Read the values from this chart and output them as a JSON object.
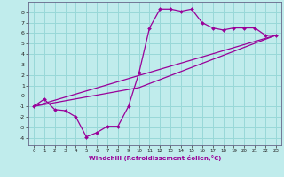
{
  "xlabel": "Windchill (Refroidissement éolien,°C)",
  "bg_color": "#c0ecec",
  "grid_color": "#98d8d8",
  "line_color": "#990099",
  "spine_color": "#666688",
  "xlim": [
    -0.5,
    23.5
  ],
  "ylim": [
    -4.7,
    9.0
  ],
  "xticks": [
    0,
    1,
    2,
    3,
    4,
    5,
    6,
    7,
    8,
    9,
    10,
    11,
    12,
    13,
    14,
    15,
    16,
    17,
    18,
    19,
    20,
    21,
    22,
    23
  ],
  "yticks": [
    -4,
    -3,
    -2,
    -1,
    0,
    1,
    2,
    3,
    4,
    5,
    6,
    7,
    8
  ],
  "line1_x": [
    0,
    1,
    2,
    3,
    4,
    5,
    6,
    7,
    8,
    9,
    10,
    11,
    12,
    13,
    14,
    15,
    16,
    17,
    18,
    19,
    20,
    21,
    22,
    23
  ],
  "line1_y": [
    -1.0,
    -0.3,
    -1.3,
    -1.4,
    -2.0,
    -3.9,
    -3.5,
    -2.9,
    -2.9,
    -1.0,
    2.2,
    6.5,
    8.3,
    8.3,
    8.1,
    8.3,
    7.0,
    6.5,
    6.3,
    6.5,
    6.5,
    6.5,
    5.8,
    5.8
  ],
  "line2_x": [
    0,
    23
  ],
  "line2_y": [
    -1.0,
    5.8
  ],
  "line3_x": [
    0,
    10,
    23
  ],
  "line3_y": [
    -1.0,
    0.8,
    5.8
  ],
  "markersize": 2.0,
  "linewidth": 0.9
}
